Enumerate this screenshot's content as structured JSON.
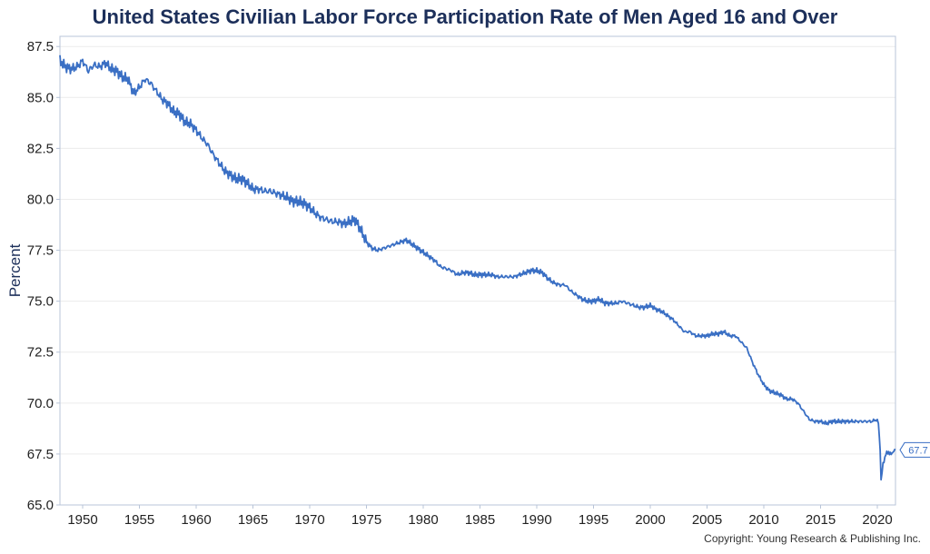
{
  "title": "United States Civilian Labor Force Participation Rate of Men Aged 16 and Over",
  "copyright": "Copyright: Young Research & Publishing Inc.",
  "colors": {
    "line": "#3a6fc4",
    "title": "#1c2f5a",
    "grid": "#ececec",
    "axis": "#b8c4d8"
  },
  "chart_data": {
    "type": "line",
    "title": "United States Civilian Labor Force Participation Rate of Men Aged 16 and Over",
    "xlabel": "",
    "ylabel": "Percent",
    "xlim": [
      1948,
      2021.6
    ],
    "ylim": [
      65,
      88
    ],
    "grid": true,
    "legend": "none",
    "y_ticks": [
      65.0,
      67.5,
      70.0,
      72.5,
      75.0,
      77.5,
      80.0,
      82.5,
      85.0,
      87.5
    ],
    "y_tick_labels": [
      "65.0",
      "67.5",
      "70.0",
      "72.5",
      "75.0",
      "77.5",
      "80.0",
      "82.5",
      "85.0",
      "87.5"
    ],
    "x_ticks": [
      1950,
      1955,
      1960,
      1965,
      1970,
      1975,
      1980,
      1985,
      1990,
      1995,
      2000,
      2005,
      2010,
      2015,
      2020
    ],
    "x_tick_labels": [
      "1950",
      "1955",
      "1960",
      "1965",
      "1970",
      "1975",
      "1980",
      "1985",
      "1990",
      "1995",
      "2000",
      "2005",
      "2010",
      "2015",
      "2020"
    ],
    "end_label": "67.7",
    "series": [
      {
        "x": [
          1948.0,
          1948.5,
          1949.0,
          1949.5,
          1950.0,
          1950.5,
          1951.0,
          1951.5,
          1952.0,
          1952.5,
          1953.0,
          1953.5,
          1954.0,
          1954.5,
          1955.0,
          1955.5,
          1956.0,
          1956.5,
          1957.0,
          1957.5,
          1958.0,
          1958.5,
          1959.0,
          1959.5,
          1960.0,
          1960.5,
          1961.0,
          1961.5,
          1962.0,
          1962.5,
          1963.0,
          1963.5,
          1964.0,
          1964.5,
          1965.0,
          1965.5,
          1966.0,
          1966.5,
          1967.0,
          1967.5,
          1968.0,
          1968.5,
          1969.0,
          1969.5,
          1970.0,
          1970.5,
          1971.0,
          1971.5,
          1972.0,
          1972.5,
          1973.0,
          1973.5,
          1974.0,
          1974.5,
          1975.0,
          1975.5,
          1976.0,
          1976.5,
          1977.0,
          1977.5,
          1978.0,
          1978.5,
          1979.0,
          1979.5,
          1980.0,
          1980.5,
          1981.0,
          1981.5,
          1982.0,
          1982.5,
          1983.0,
          1983.5,
          1984.0,
          1984.5,
          1985.0,
          1985.5,
          1986.0,
          1986.5,
          1987.0,
          1987.5,
          1988.0,
          1988.5,
          1989.0,
          1989.5,
          1990.0,
          1990.5,
          1991.0,
          1991.5,
          1992.0,
          1992.5,
          1993.0,
          1993.5,
          1994.0,
          1994.5,
          1995.0,
          1995.5,
          1996.0,
          1996.5,
          1997.0,
          1997.5,
          1998.0,
          1998.5,
          1999.0,
          1999.5,
          2000.0,
          2000.5,
          2001.0,
          2001.5,
          2002.0,
          2002.5,
          2003.0,
          2003.5,
          2004.0,
          2004.5,
          2005.0,
          2005.5,
          2006.0,
          2006.5,
          2007.0,
          2007.5,
          2008.0,
          2008.5,
          2009.0,
          2009.5,
          2010.0,
          2010.5,
          2011.0,
          2011.5,
          2012.0,
          2012.5,
          2013.0,
          2013.5,
          2014.0,
          2014.5,
          2015.0,
          2015.5,
          2016.0,
          2016.5,
          2017.0,
          2017.5,
          2018.0,
          2018.5,
          2019.0,
          2019.5,
          2020.0,
          2020.1,
          2020.25,
          2020.33,
          2020.5,
          2020.75,
          2021.0,
          2021.3,
          2021.6
        ],
        "values": [
          86.8,
          86.5,
          86.4,
          86.5,
          86.8,
          86.3,
          86.6,
          86.5,
          86.7,
          86.4,
          86.3,
          86.0,
          85.9,
          85.2,
          85.5,
          85.9,
          85.7,
          85.3,
          84.9,
          84.7,
          84.3,
          84.2,
          83.8,
          83.7,
          83.4,
          83.0,
          82.7,
          82.2,
          81.8,
          81.4,
          81.2,
          81.0,
          81.0,
          80.8,
          80.5,
          80.5,
          80.4,
          80.4,
          80.3,
          80.2,
          80.1,
          79.9,
          79.9,
          79.8,
          79.6,
          79.3,
          79.1,
          79.0,
          78.9,
          78.9,
          78.8,
          78.9,
          79.0,
          78.5,
          77.9,
          77.6,
          77.5,
          77.6,
          77.7,
          77.8,
          77.9,
          78.0,
          77.8,
          77.6,
          77.4,
          77.2,
          77.0,
          76.7,
          76.6,
          76.5,
          76.3,
          76.4,
          76.4,
          76.3,
          76.3,
          76.3,
          76.3,
          76.2,
          76.2,
          76.2,
          76.2,
          76.3,
          76.4,
          76.5,
          76.5,
          76.4,
          76.1,
          75.9,
          75.8,
          75.8,
          75.5,
          75.3,
          75.1,
          75.0,
          75.0,
          75.1,
          74.9,
          74.9,
          74.9,
          75.0,
          74.9,
          74.8,
          74.7,
          74.7,
          74.8,
          74.6,
          74.5,
          74.3,
          74.1,
          73.8,
          73.5,
          73.5,
          73.3,
          73.3,
          73.3,
          73.4,
          73.4,
          73.5,
          73.3,
          73.3,
          73.0,
          72.7,
          72.0,
          71.4,
          70.9,
          70.6,
          70.5,
          70.4,
          70.2,
          70.2,
          70.0,
          69.6,
          69.2,
          69.1,
          69.1,
          69.0,
          69.1,
          69.1,
          69.1,
          69.1,
          69.1,
          69.1,
          69.1,
          69.1,
          69.2,
          69.0,
          67.7,
          66.2,
          67.0,
          67.5,
          67.6,
          67.5,
          67.7
        ]
      }
    ]
  }
}
